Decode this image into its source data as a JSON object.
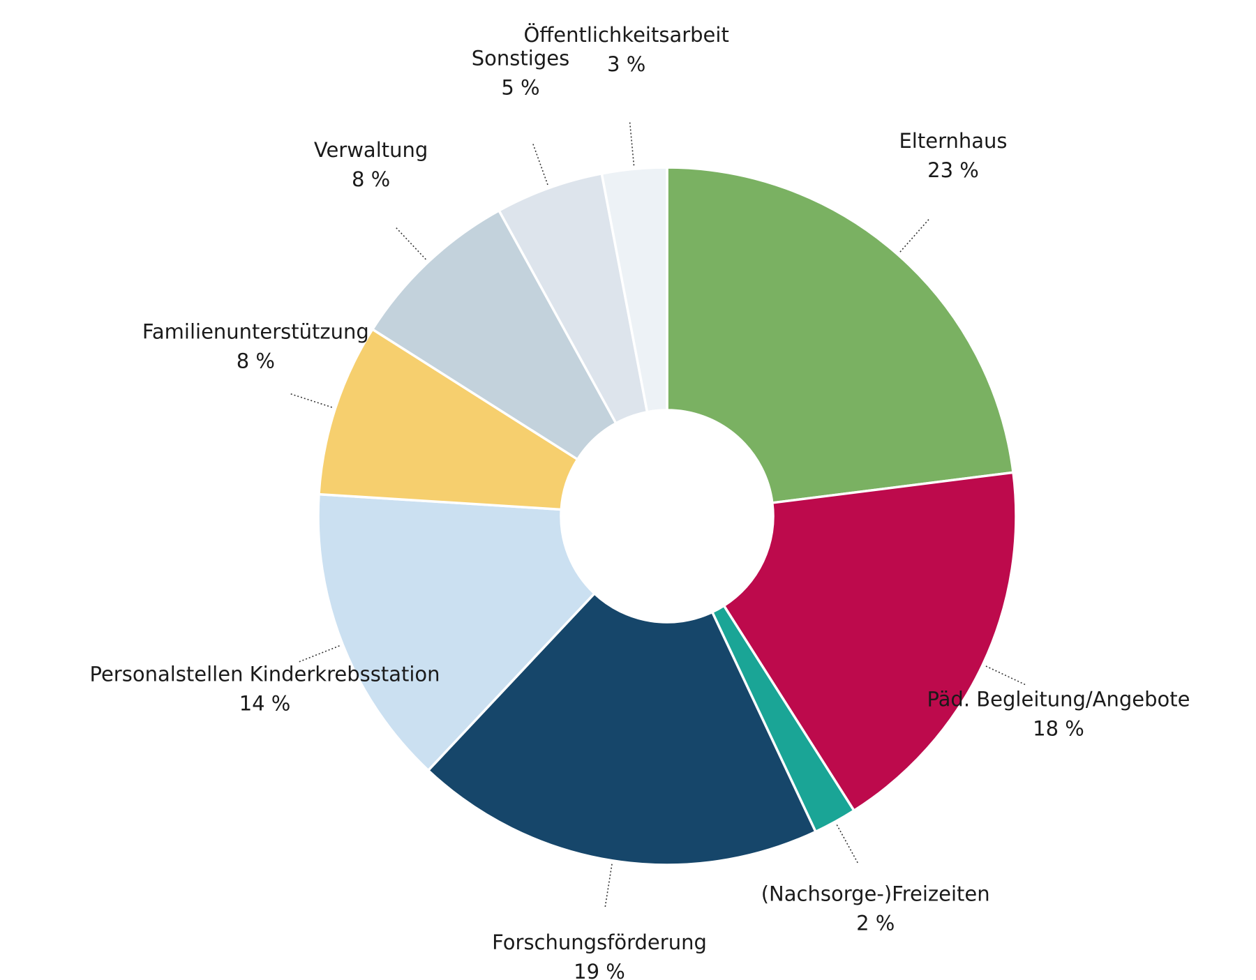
{
  "chart_data": {
    "type": "pie",
    "donut": true,
    "slices": [
      {
        "label": "Elternhaus",
        "value": 23,
        "value_label": "23 %",
        "color": "#7ab162"
      },
      {
        "label": "Päd. Begleitung/Angebote",
        "value": 18,
        "value_label": "18 %",
        "color": "#bd0a4c"
      },
      {
        "label": "(Nachsorge-)Freizeiten",
        "value": 2,
        "value_label": "2 %",
        "color": "#1aa596"
      },
      {
        "label": "Forschungsförderung",
        "value": 19,
        "value_label": "19 %",
        "color": "#16466a"
      },
      {
        "label": "Personalstellen Kinderkrebsstation",
        "value": 14,
        "value_label": "14 %",
        "color": "#cbe0f1"
      },
      {
        "label": "Familienunterstützung",
        "value": 8,
        "value_label": "8 %",
        "color": "#f6cf6e"
      },
      {
        "label": "Verwaltung",
        "value": 8,
        "value_label": "8 %",
        "color": "#c3d2dc"
      },
      {
        "label": "Sonstiges",
        "value": 5,
        "value_label": "5 %",
        "color": "#dde4ec"
      },
      {
        "label": "Öffentlichkeitsarbeit",
        "value": 3,
        "value_label": "3 %",
        "color": "#edf2f6"
      }
    ]
  }
}
